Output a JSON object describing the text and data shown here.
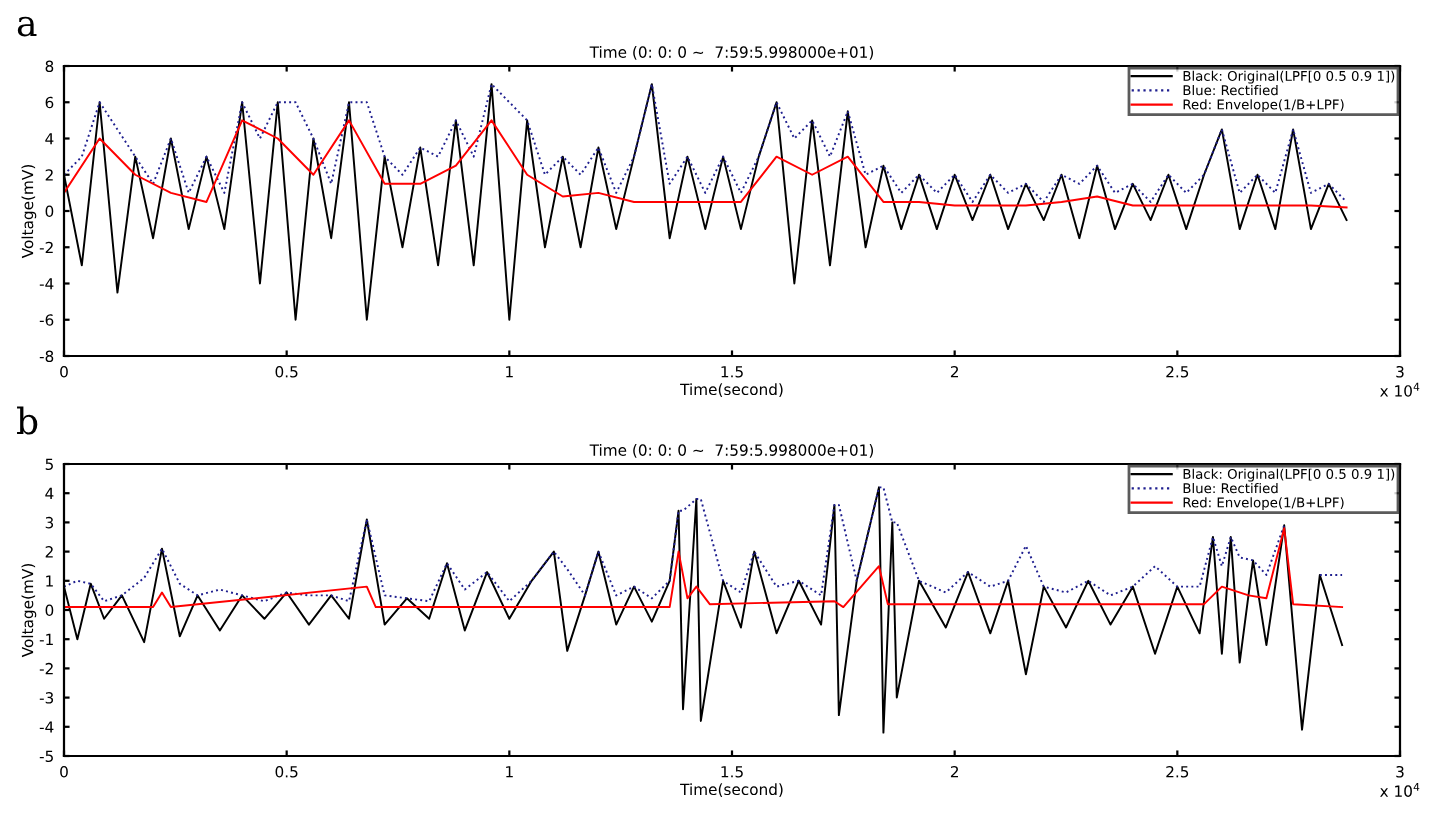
{
  "chart_data": [
    {
      "type": "line",
      "title": "Time (0: 0: 0 ~  7:59:5.998000e+01)",
      "xlabel": "Time(second)",
      "ylabel": "Voltage(mV)",
      "annotations": [
        "a",
        "x 10$^{4}$"
      ],
      "xlim": [
        0,
        3
      ],
      "xticks": [
        0,
        0.5,
        1,
        1.5,
        2,
        2.5,
        3
      ],
      "ylim": [
        -8,
        8
      ],
      "yticks": [
        -8,
        -6,
        -4,
        -2,
        0,
        2,
        4,
        6,
        8
      ],
      "grid": false,
      "legend": "top right",
      "series": [
        {
          "name": "Black: Original(LPF[0 0.5 0.9 1])",
          "color": "#000000",
          "line_style": "solid",
          "x": [
            0,
            0.04,
            0.08,
            0.12,
            0.16,
            0.2,
            0.24,
            0.28,
            0.32,
            0.36,
            0.4,
            0.44,
            0.48,
            0.52,
            0.56,
            0.6,
            0.64,
            0.68,
            0.72,
            0.76,
            0.8,
            0.84,
            0.88,
            0.92,
            0.96,
            1.0,
            1.04,
            1.08,
            1.12,
            1.16,
            1.2,
            1.24,
            1.28,
            1.32,
            1.36,
            1.4,
            1.44,
            1.48,
            1.52,
            1.56,
            1.6,
            1.64,
            1.68,
            1.72,
            1.76,
            1.8,
            1.84,
            1.88,
            1.92,
            1.96,
            2.0,
            2.04,
            2.08,
            2.12,
            2.16,
            2.2,
            2.24,
            2.28,
            2.32,
            2.36,
            2.4,
            2.44,
            2.48,
            2.52,
            2.56,
            2.6,
            2.64,
            2.68,
            2.72,
            2.76,
            2.8,
            2.84,
            2.88
          ],
          "values": [
            2,
            -3,
            6,
            -4.5,
            3,
            -1.5,
            4,
            -1,
            3,
            -1,
            6,
            -4,
            6,
            -6,
            4,
            -1.5,
            6,
            -6,
            3,
            -2,
            3.5,
            -3,
            5,
            -3,
            7,
            -6,
            5,
            -2,
            3,
            -2,
            3.5,
            -1,
            3,
            7,
            -1.5,
            3,
            -1,
            3,
            -1,
            3,
            6,
            -4,
            5,
            -3,
            5.5,
            -2,
            2.5,
            -1,
            2,
            -1,
            2,
            -0.5,
            2,
            -1,
            1.5,
            -0.5,
            2,
            -1.5,
            2.5,
            -1,
            1.5,
            -0.5,
            2,
            -1,
            2,
            4.5,
            -1,
            2,
            -1,
            4.5,
            -1,
            1.5,
            -0.5
          ]
        },
        {
          "name": "Blue: Rectified",
          "color": "#1f1f8f",
          "line_style": "dotted",
          "x": [
            0,
            0.04,
            0.08,
            0.12,
            0.16,
            0.2,
            0.24,
            0.28,
            0.32,
            0.36,
            0.4,
            0.44,
            0.48,
            0.52,
            0.56,
            0.6,
            0.64,
            0.68,
            0.72,
            0.76,
            0.8,
            0.84,
            0.88,
            0.92,
            0.96,
            1.0,
            1.04,
            1.08,
            1.12,
            1.16,
            1.2,
            1.24,
            1.28,
            1.32,
            1.36,
            1.4,
            1.44,
            1.48,
            1.52,
            1.56,
            1.6,
            1.64,
            1.68,
            1.72,
            1.76,
            1.8,
            1.84,
            1.88,
            1.92,
            1.96,
            2.0,
            2.04,
            2.08,
            2.12,
            2.16,
            2.2,
            2.24,
            2.28,
            2.32,
            2.36,
            2.4,
            2.44,
            2.48,
            2.52,
            2.56,
            2.6,
            2.64,
            2.68,
            2.72,
            2.76,
            2.8,
            2.84,
            2.88
          ],
          "values": [
            2,
            3,
            6,
            4.5,
            3,
            1.5,
            4,
            1,
            3,
            1,
            6,
            4,
            6,
            6,
            4,
            1.5,
            6,
            6,
            3,
            2,
            3.5,
            3,
            5,
            3,
            7,
            6,
            5,
            2,
            3,
            2,
            3.5,
            1,
            3,
            7,
            1.5,
            3,
            1,
            3,
            1,
            3,
            6,
            4,
            5,
            3,
            5.5,
            2,
            2.5,
            1,
            2,
            1,
            2,
            0.5,
            2,
            1,
            1.5,
            0.5,
            2,
            1.5,
            2.5,
            1,
            1.5,
            0.5,
            2,
            1,
            2,
            4.5,
            1,
            2,
            1,
            4.5,
            1,
            1.5,
            0.5
          ]
        },
        {
          "name": "Red: Envelope(1/B+LPF)",
          "color": "#ff0000",
          "line_style": "solid",
          "x": [
            0,
            0.08,
            0.16,
            0.24,
            0.32,
            0.4,
            0.48,
            0.56,
            0.64,
            0.72,
            0.8,
            0.88,
            0.96,
            1.04,
            1.12,
            1.2,
            1.28,
            1.36,
            1.44,
            1.52,
            1.6,
            1.68,
            1.76,
            1.84,
            1.92,
            2.0,
            2.08,
            2.16,
            2.24,
            2.32,
            2.4,
            2.48,
            2.56,
            2.64,
            2.72,
            2.8,
            2.88
          ],
          "values": [
            1,
            4,
            2,
            1,
            0.5,
            5,
            4,
            2,
            5,
            1.5,
            1.5,
            2.5,
            5,
            2,
            0.8,
            1,
            0.5,
            0.5,
            0.5,
            0.5,
            3,
            2,
            3,
            0.5,
            0.5,
            0.3,
            0.3,
            0.3,
            0.5,
            0.8,
            0.3,
            0.3,
            0.3,
            0.3,
            0.3,
            0.3,
            0.2
          ]
        }
      ]
    },
    {
      "type": "line",
      "title": "Time (0: 0: 0 ~  7:59:5.998000e+01)",
      "xlabel": "Time(second)",
      "ylabel": "Voltage(mV)",
      "annotations": [
        "b",
        "x 10$^{4}$"
      ],
      "xlim": [
        0,
        3
      ],
      "xticks": [
        0,
        0.5,
        1,
        1.5,
        2,
        2.5,
        3
      ],
      "ylim": [
        -5,
        5
      ],
      "yticks": [
        -5,
        -4,
        -3,
        -2,
        -1,
        0,
        1,
        2,
        3,
        4,
        5
      ],
      "grid": false,
      "legend": "top right",
      "series": [
        {
          "name": "Black: Original(LPF[0 0.5 0.9 1])",
          "color": "#000000",
          "line_style": "solid",
          "x": [
            0,
            0.03,
            0.06,
            0.09,
            0.13,
            0.18,
            0.22,
            0.26,
            0.3,
            0.35,
            0.4,
            0.45,
            0.5,
            0.55,
            0.6,
            0.64,
            0.68,
            0.72,
            0.77,
            0.82,
            0.86,
            0.9,
            0.95,
            1.0,
            1.05,
            1.1,
            1.13,
            1.17,
            1.2,
            1.24,
            1.28,
            1.32,
            1.36,
            1.38,
            1.39,
            1.42,
            1.43,
            1.48,
            1.52,
            1.55,
            1.6,
            1.65,
            1.7,
            1.73,
            1.74,
            1.78,
            1.83,
            1.84,
            1.86,
            1.87,
            1.92,
            1.98,
            2.03,
            2.08,
            2.12,
            2.16,
            2.2,
            2.25,
            2.3,
            2.35,
            2.4,
            2.45,
            2.5,
            2.55,
            2.58,
            2.6,
            2.62,
            2.64,
            2.67,
            2.7,
            2.74,
            2.78,
            2.82,
            2.87
          ],
          "values": [
            0.8,
            -1.0,
            0.9,
            -0.3,
            0.5,
            -1.1,
            2.1,
            -0.9,
            0.5,
            -0.7,
            0.5,
            -0.3,
            0.6,
            -0.5,
            0.5,
            -0.3,
            3.1,
            -0.5,
            0.4,
            -0.3,
            1.6,
            -0.7,
            1.3,
            -0.3,
            1.0,
            2.0,
            -1.4,
            0.5,
            2.0,
            -0.5,
            0.8,
            -0.4,
            1.0,
            3.4,
            -3.4,
            3.8,
            -3.8,
            1.0,
            -0.6,
            2.0,
            -0.8,
            1.0,
            -0.5,
            3.6,
            -3.6,
            1.0,
            4.2,
            -4.2,
            3.0,
            -3.0,
            1.0,
            -0.6,
            1.3,
            -0.8,
            1.0,
            -2.2,
            0.8,
            -0.6,
            1.0,
            -0.5,
            0.8,
            -1.5,
            0.8,
            -0.8,
            2.5,
            -1.5,
            2.5,
            -1.8,
            1.7,
            -1.2,
            2.9,
            -4.1,
            1.2,
            -1.2
          ]
        },
        {
          "name": "Blue: Rectified",
          "color": "#1f1f8f",
          "line_style": "dotted",
          "x": [
            0,
            0.03,
            0.06,
            0.09,
            0.13,
            0.18,
            0.22,
            0.26,
            0.3,
            0.35,
            0.4,
            0.45,
            0.5,
            0.55,
            0.6,
            0.64,
            0.68,
            0.72,
            0.77,
            0.82,
            0.86,
            0.9,
            0.95,
            1.0,
            1.05,
            1.1,
            1.13,
            1.17,
            1.2,
            1.24,
            1.28,
            1.32,
            1.36,
            1.38,
            1.39,
            1.42,
            1.43,
            1.48,
            1.52,
            1.55,
            1.6,
            1.65,
            1.7,
            1.73,
            1.74,
            1.78,
            1.83,
            1.84,
            1.86,
            1.87,
            1.92,
            1.98,
            2.03,
            2.08,
            2.12,
            2.16,
            2.2,
            2.25,
            2.3,
            2.35,
            2.4,
            2.45,
            2.5,
            2.55,
            2.58,
            2.6,
            2.62,
            2.64,
            2.67,
            2.7,
            2.74,
            2.78,
            2.82,
            2.87
          ],
          "values": [
            0.8,
            1.0,
            0.9,
            0.3,
            0.5,
            1.1,
            2.1,
            0.9,
            0.5,
            0.7,
            0.5,
            0.3,
            0.6,
            0.5,
            0.5,
            0.3,
            3.1,
            0.5,
            0.4,
            0.3,
            1.6,
            0.7,
            1.3,
            0.3,
            1.0,
            2.0,
            1.4,
            0.5,
            2.0,
            0.5,
            0.8,
            0.4,
            1.0,
            3.4,
            3.4,
            3.8,
            3.8,
            1.0,
            0.6,
            2.0,
            0.8,
            1.0,
            0.5,
            3.6,
            3.6,
            1.0,
            4.2,
            4.2,
            3.0,
            3.0,
            1.0,
            0.6,
            1.3,
            0.8,
            1.0,
            2.2,
            0.8,
            0.6,
            1.0,
            0.5,
            0.8,
            1.5,
            0.8,
            0.8,
            2.5,
            1.5,
            2.5,
            1.8,
            1.7,
            1.2,
            2.9,
            null,
            1.2,
            1.2
          ]
        },
        {
          "name": "Red: Envelope(1/B+LPF)",
          "color": "#ff0000",
          "line_style": "solid",
          "x": [
            0,
            0.2,
            0.22,
            0.24,
            0.68,
            0.7,
            1.36,
            1.38,
            1.4,
            1.42,
            1.45,
            1.73,
            1.75,
            1.83,
            1.85,
            2.56,
            2.6,
            2.66,
            2.7,
            2.74,
            2.76,
            2.87
          ],
          "values": [
            0.1,
            0.1,
            0.6,
            0.1,
            0.8,
            0.1,
            0.1,
            2.0,
            0.4,
            0.8,
            0.2,
            0.3,
            0.1,
            1.5,
            0.2,
            0.2,
            0.8,
            0.5,
            0.4,
            2.8,
            0.2,
            0.1
          ]
        }
      ]
    }
  ]
}
